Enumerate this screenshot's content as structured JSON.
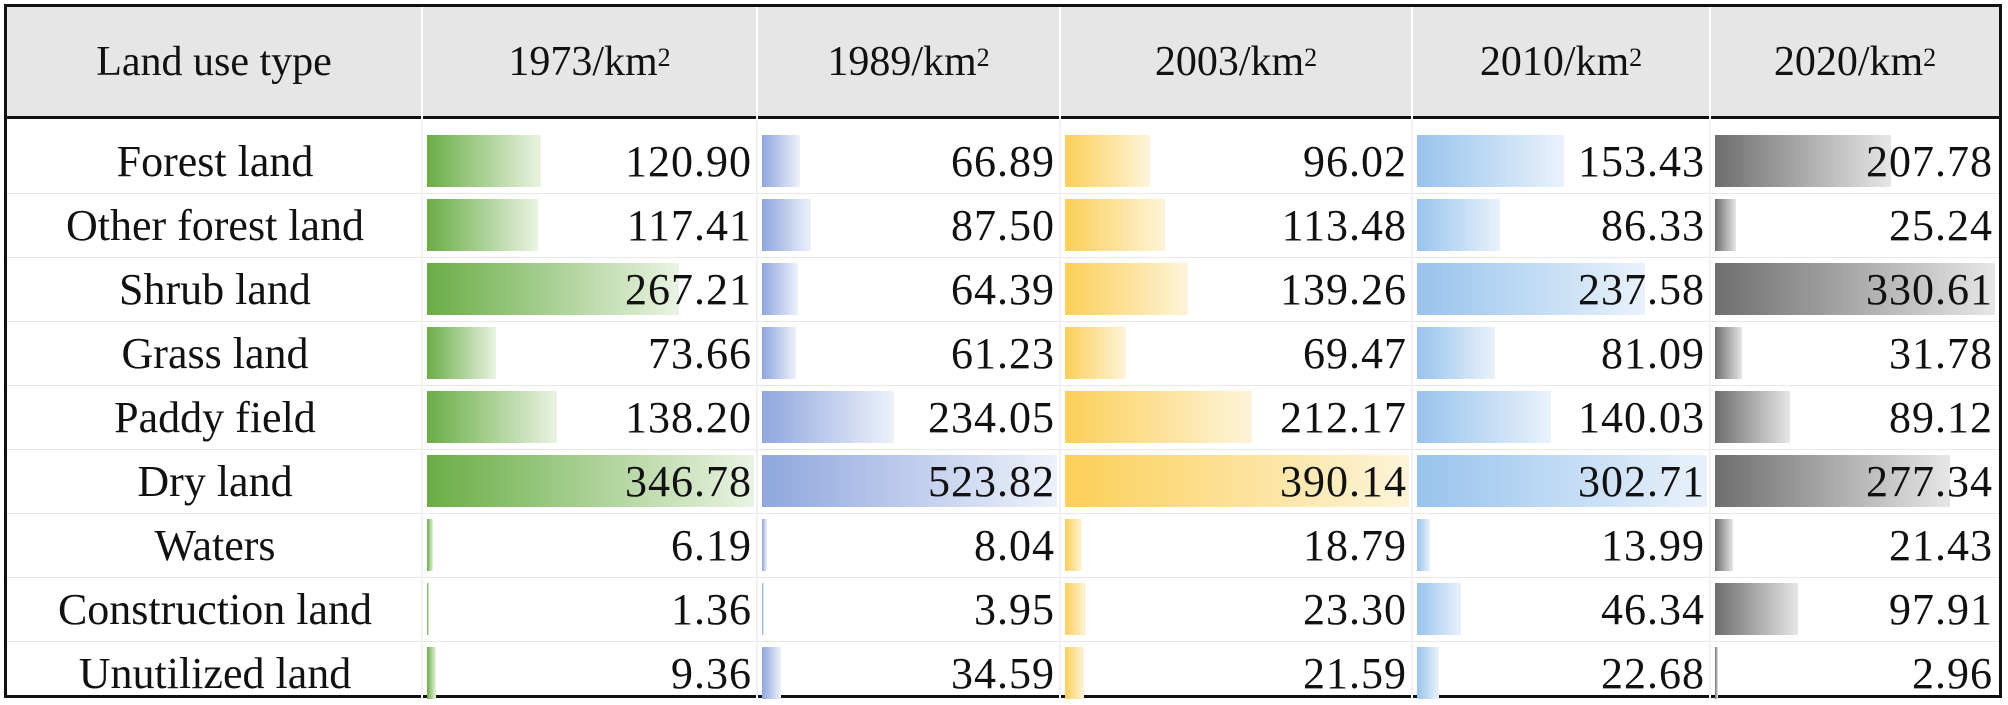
{
  "chart_data": {
    "type": "table",
    "title": "",
    "header": {
      "first": "Land use type",
      "unit": "/km",
      "unit_exp": "2"
    },
    "years": [
      "1973",
      "1989",
      "2003",
      "2010",
      "2020"
    ],
    "categories": [
      "Forest land",
      "Other forest land",
      "Shrub land",
      "Grass land",
      "Paddy field",
      "Dry land",
      "Waters",
      "Construction land",
      "Unutilized land"
    ],
    "series": [
      {
        "year": "1973",
        "color_start": "#6aad46",
        "color_end": "#e9f3e2",
        "values": [
          "120.90",
          "117.41",
          "267.21",
          "73.66",
          "138.20",
          "346.78",
          "6.19",
          "1.36",
          "9.36"
        ]
      },
      {
        "year": "1989",
        "color_start": "#8fa7de",
        "color_end": "#edf1fa",
        "values": [
          "66.89",
          "87.50",
          "64.39",
          "61.23",
          "234.05",
          "523.82",
          "8.04",
          "3.95",
          "34.59"
        ]
      },
      {
        "year": "2003",
        "color_start": "#fbcf57",
        "color_end": "#fdf4d9",
        "values": [
          "96.02",
          "113.48",
          "139.26",
          "69.47",
          "212.17",
          "390.14",
          "18.79",
          "23.30",
          "21.59"
        ]
      },
      {
        "year": "2010",
        "color_start": "#98c3ec",
        "color_end": "#e9f2fb",
        "values": [
          "153.43",
          "86.33",
          "237.58",
          "81.09",
          "140.03",
          "302.71",
          "13.99",
          "46.34",
          "22.68"
        ]
      },
      {
        "year": "2020",
        "color_start": "#6e6e6e",
        "color_end": "#e6e6e6",
        "values": [
          "207.78",
          "25.24",
          "330.61",
          "31.78",
          "89.12",
          "277.34",
          "21.43",
          "97.91",
          "2.96"
        ]
      }
    ]
  }
}
